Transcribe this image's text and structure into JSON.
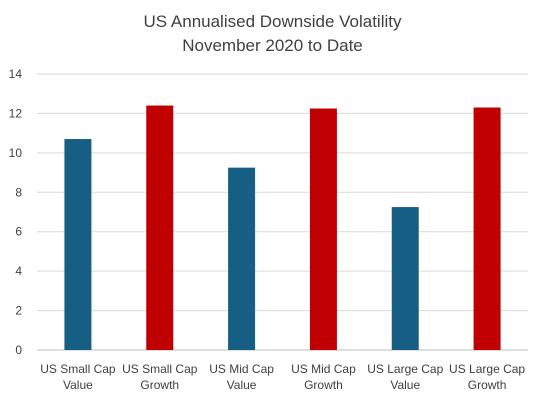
{
  "chart_data": {
    "type": "bar",
    "title": "US Annualised Downside Volatility",
    "subtitle": "November 2020 to Date",
    "categories": [
      [
        "US Small Cap",
        "Value"
      ],
      [
        "US Small Cap",
        "Growth"
      ],
      [
        "US Mid Cap",
        "Value"
      ],
      [
        "US Mid Cap",
        "Growth"
      ],
      [
        "US Large Cap",
        "Value"
      ],
      [
        "US Large Cap",
        "Growth"
      ]
    ],
    "values": [
      10.7,
      12.4,
      9.25,
      12.25,
      7.25,
      12.3
    ],
    "bar_colors": [
      "#175e84",
      "#c00000",
      "#175e84",
      "#c00000",
      "#175e84",
      "#c00000"
    ],
    "ylim": [
      0,
      14
    ],
    "yticks": [
      0,
      2,
      4,
      6,
      8,
      10,
      12,
      14
    ],
    "grid": true,
    "legend": "none",
    "xlabel": "",
    "ylabel": ""
  }
}
